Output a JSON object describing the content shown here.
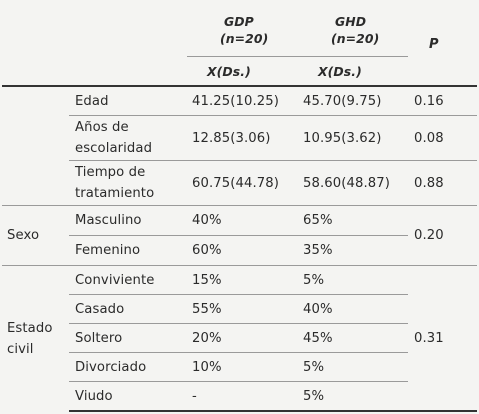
{
  "header": {
    "gdp_title": "GDP",
    "gdp_n": "(n=20)",
    "ghd_title": "GHD",
    "ghd_n": "(n=20)",
    "p_label": "P",
    "gdp_stat": "X(Ds.)",
    "ghd_stat": "X(Ds.)"
  },
  "rows": {
    "edad": {
      "label": "Edad",
      "gdp": "41.25(10.25)",
      "ghd": "45.70(9.75)",
      "p": "0.16"
    },
    "escolaridad": {
      "label_1": "Años de",
      "label_2": "escolaridad",
      "gdp": "12.85(3.06)",
      "ghd": "10.95(3.62)",
      "p": "0.08"
    },
    "tratamiento": {
      "label_1": "Tiempo de",
      "label_2": "tratamiento",
      "gdp": "60.75(44.78)",
      "ghd": "58.60(48.87)",
      "p": "0.88"
    }
  },
  "sexo": {
    "group": "Sexo",
    "p": "0.20",
    "items": [
      {
        "label": "Masculino",
        "gdp": "40%",
        "ghd": "65%"
      },
      {
        "label": "Femenino",
        "gdp": "60%",
        "ghd": "35%"
      }
    ]
  },
  "estado": {
    "group_1": "Estado",
    "group_2": "civil",
    "p": "0.31",
    "items": [
      {
        "label": "Conviviente",
        "gdp": "15%",
        "ghd": "5%"
      },
      {
        "label": "Casado",
        "gdp": "55%",
        "ghd": "40%"
      },
      {
        "label": "Soltero",
        "gdp": "20%",
        "ghd": "45%"
      },
      {
        "label": "Divorciado",
        "gdp": "10%",
        "ghd": "5%"
      },
      {
        "label": "Viudo",
        "gdp": "-",
        "ghd": "5%"
      }
    ]
  }
}
